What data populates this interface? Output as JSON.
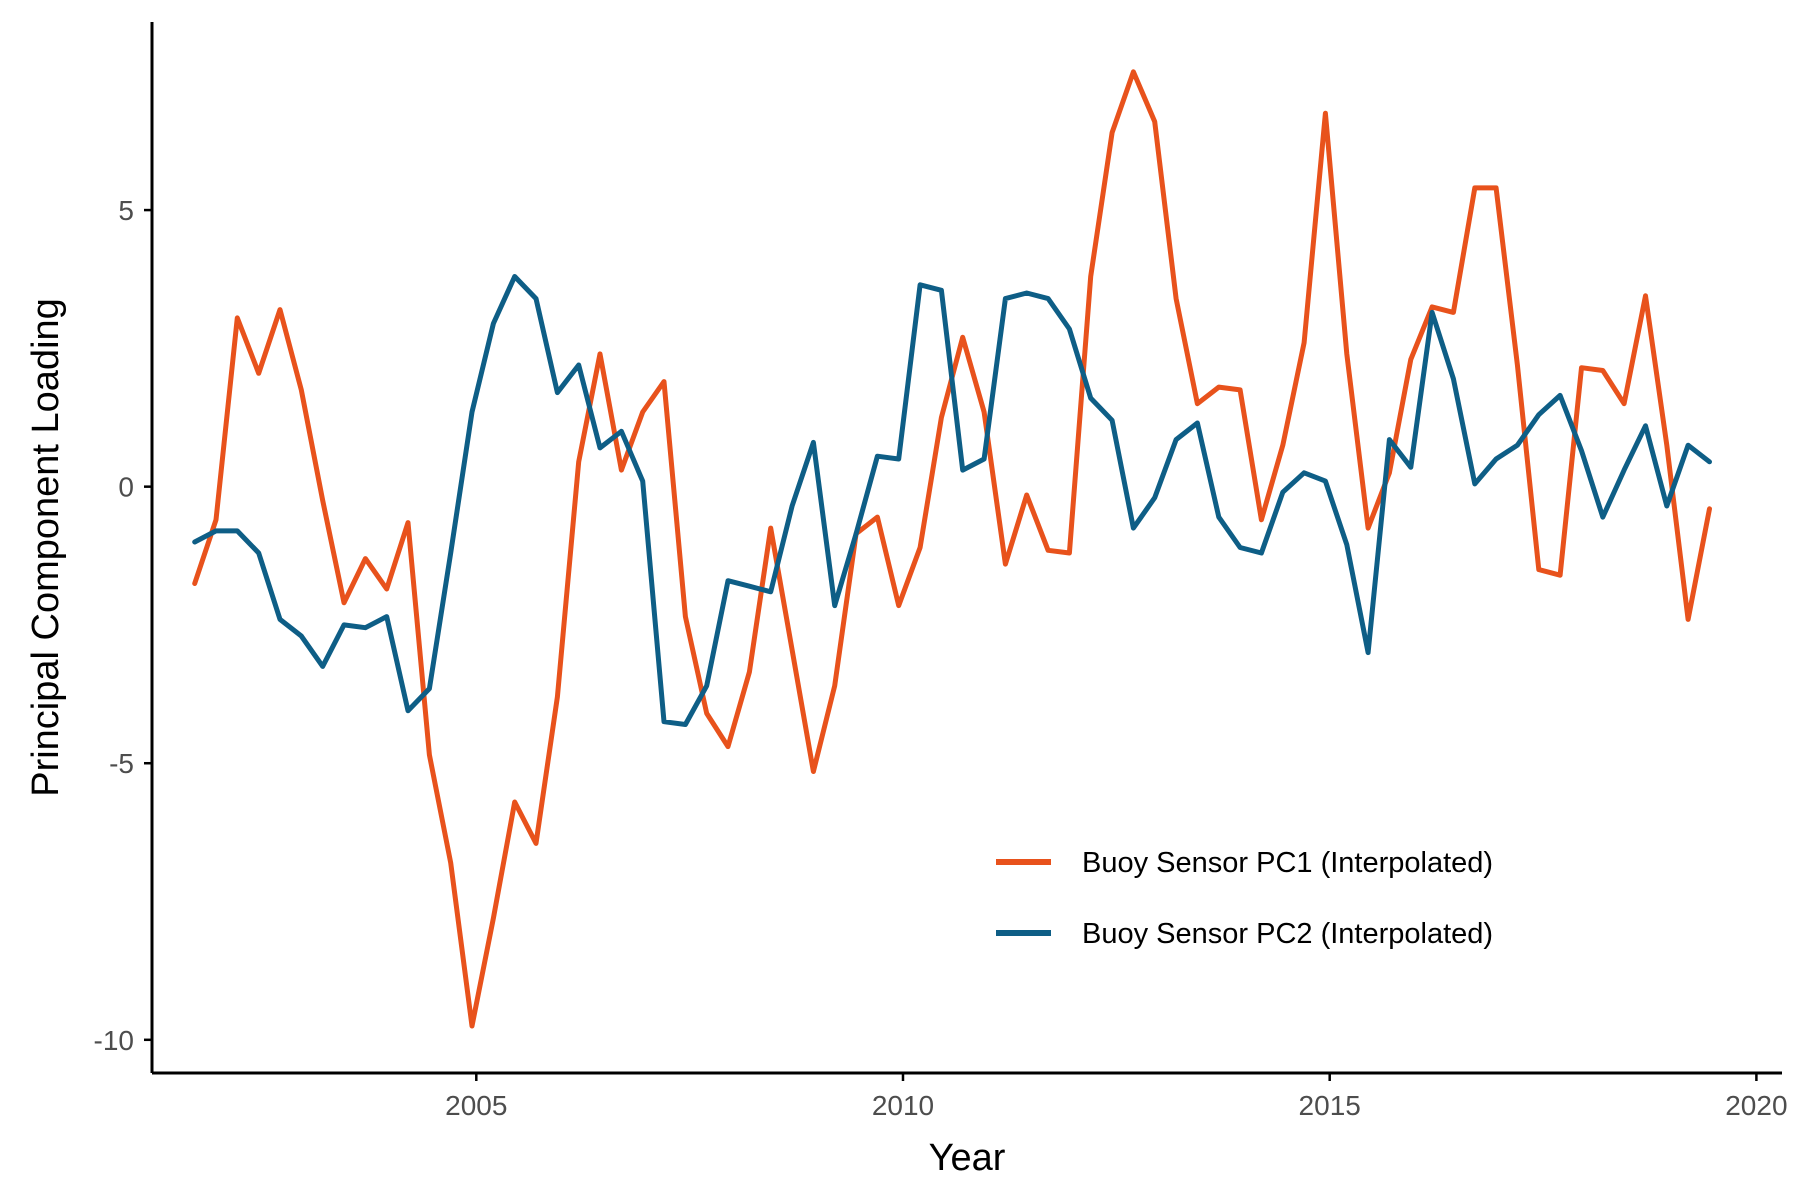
{
  "chart_data": {
    "type": "line",
    "title": "",
    "xlabel": "Year",
    "ylabel": "Principal Component Loading",
    "xlim": [
      2001.2,
      2020.3
    ],
    "ylim": [
      -10.6,
      8.4
    ],
    "x_ticks": [
      2005,
      2010,
      2015,
      2020
    ],
    "x_tick_labels": [
      "2005",
      "2010",
      "2015",
      "2020"
    ],
    "y_ticks": [
      -10,
      -5,
      0,
      5
    ],
    "y_tick_labels": [
      "-10",
      "-5",
      "0",
      "5"
    ],
    "grid": false,
    "legend_position": "bottom-right",
    "series": [
      {
        "name": "Buoy Sensor PC1 (Interpolated)",
        "color": "#E8521C",
        "x": [
          2001.7,
          2001.95,
          2002.2,
          2002.45,
          2002.7,
          2002.95,
          2003.2,
          2003.45,
          2003.7,
          2003.95,
          2004.2,
          2004.45,
          2004.7,
          2004.95,
          2005.2,
          2005.45,
          2005.7,
          2005.95,
          2006.2,
          2006.45,
          2006.7,
          2006.95,
          2007.2,
          2007.45,
          2007.7,
          2007.95,
          2008.2,
          2008.45,
          2008.7,
          2008.95,
          2009.2,
          2009.45,
          2009.7,
          2009.95,
          2010.2,
          2010.45,
          2010.7,
          2010.95,
          2011.2,
          2011.45,
          2011.7,
          2011.95,
          2012.2,
          2012.45,
          2012.7,
          2012.95,
          2013.2,
          2013.45,
          2013.7,
          2013.95,
          2014.2,
          2014.45,
          2014.7,
          2014.95,
          2015.2,
          2015.45,
          2015.7,
          2015.95,
          2016.2,
          2016.45,
          2016.7,
          2016.95,
          2017.2,
          2017.45,
          2017.7,
          2017.95,
          2018.2,
          2018.45,
          2018.7,
          2018.95,
          2019.2,
          2019.45
        ],
        "y": [
          -1.75,
          -0.6,
          3.05,
          2.05,
          3.2,
          1.75,
          -0.25,
          -2.1,
          -1.3,
          -1.85,
          -0.65,
          -4.85,
          -6.8,
          -9.75,
          -7.8,
          -5.7,
          -6.45,
          -3.8,
          0.45,
          2.4,
          0.3,
          1.35,
          1.9,
          -2.35,
          -4.1,
          -4.7,
          -3.35,
          -0.75,
          -2.95,
          -5.15,
          -3.6,
          -0.85,
          -0.55,
          -2.15,
          -1.1,
          1.25,
          2.7,
          1.35,
          -1.4,
          -0.15,
          -1.15,
          -1.2,
          3.8,
          6.4,
          7.5,
          6.6,
          3.4,
          1.5,
          1.8,
          1.75,
          -0.6,
          0.75,
          2.6,
          6.75,
          2.4,
          -0.75,
          0.25,
          2.3,
          3.25,
          3.15,
          5.4,
          5.4,
          2.2,
          -1.5,
          -1.6,
          2.15,
          2.1,
          1.5,
          3.45,
          0.75,
          -2.4,
          -0.4
        ]
      },
      {
        "name": "Buoy Sensor PC2 (Interpolated)",
        "color": "#0E5E86",
        "x": [
          2001.7,
          2001.95,
          2002.2,
          2002.45,
          2002.7,
          2002.95,
          2003.2,
          2003.45,
          2003.7,
          2003.95,
          2004.2,
          2004.45,
          2004.7,
          2004.95,
          2005.2,
          2005.45,
          2005.7,
          2005.95,
          2006.2,
          2006.45,
          2006.7,
          2006.95,
          2007.2,
          2007.45,
          2007.7,
          2007.95,
          2008.2,
          2008.45,
          2008.7,
          2008.95,
          2009.2,
          2009.45,
          2009.7,
          2009.95,
          2010.2,
          2010.45,
          2010.7,
          2010.95,
          2011.2,
          2011.45,
          2011.7,
          2011.95,
          2012.2,
          2012.45,
          2012.7,
          2012.95,
          2013.2,
          2013.45,
          2013.7,
          2013.95,
          2014.2,
          2014.45,
          2014.7,
          2014.95,
          2015.2,
          2015.45,
          2015.7,
          2015.95,
          2016.2,
          2016.45,
          2016.7,
          2016.95,
          2017.2,
          2017.45,
          2017.7,
          2017.95,
          2018.2,
          2018.45,
          2018.7,
          2018.95,
          2019.2,
          2019.45
        ],
        "y": [
          -1.0,
          -0.8,
          -0.8,
          -1.2,
          -2.4,
          -2.7,
          -3.25,
          -2.5,
          -2.55,
          -2.35,
          -4.05,
          -3.65,
          -1.2,
          1.35,
          2.95,
          3.8,
          3.4,
          1.7,
          2.2,
          0.7,
          1.0,
          0.1,
          -4.25,
          -4.3,
          -3.6,
          -1.7,
          -1.8,
          -1.9,
          -0.35,
          0.8,
          -2.15,
          -0.85,
          0.55,
          0.5,
          3.65,
          3.55,
          0.3,
          0.5,
          3.4,
          3.5,
          3.4,
          2.85,
          1.6,
          1.2,
          -0.75,
          -0.2,
          0.85,
          1.15,
          -0.55,
          -1.1,
          -1.2,
          -0.1,
          0.25,
          0.1,
          -1.05,
          -3.0,
          0.85,
          0.35,
          3.15,
          1.95,
          0.05,
          0.5,
          0.75,
          1.3,
          1.65,
          0.65,
          -0.55,
          0.3,
          1.1,
          -0.35,
          0.75,
          0.45
        ]
      }
    ]
  }
}
